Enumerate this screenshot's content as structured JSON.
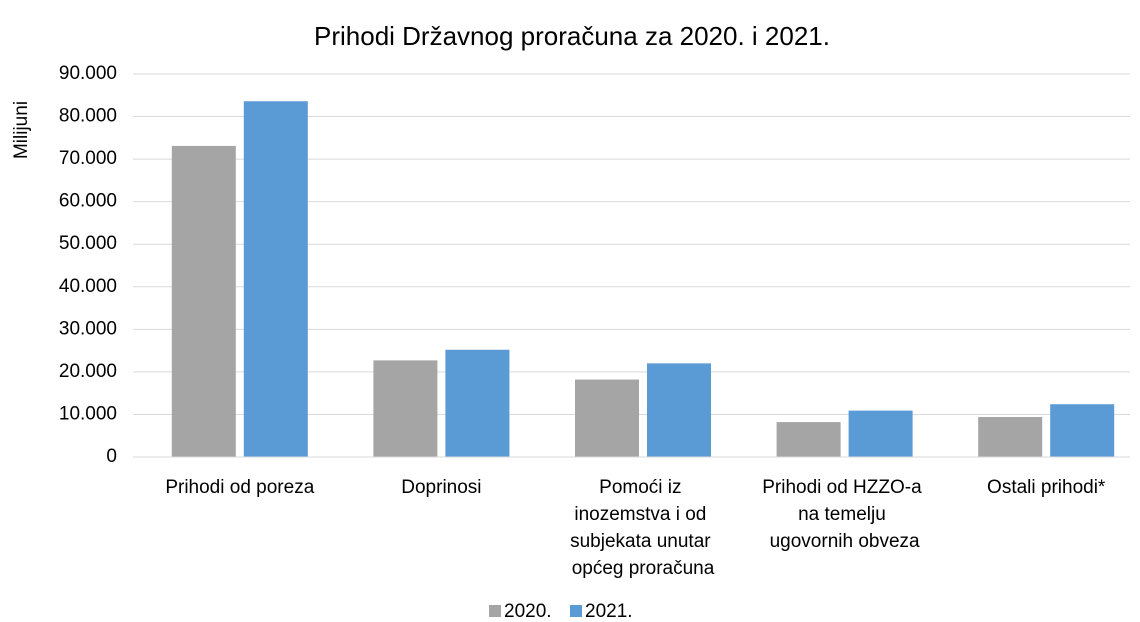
{
  "chart_data": {
    "type": "bar",
    "title": "Prihodi Državnog proračuna za 2020. i 2021.",
    "y_axis_label": "Milijuni",
    "categories": [
      "Prihodi od poreza",
      "Doprinosi",
      "Pomoći iz inozemstva i od subjekata unutar općeg proračuna",
      "Prihodi od HZZO-a na temelju ugovornih obveza",
      "Ostali prihodi*"
    ],
    "series": [
      {
        "name": "2020.",
        "color": "#a5a5a5",
        "values": [
          73100,
          22700,
          18200,
          8200,
          9400
        ]
      },
      {
        "name": "2021.",
        "color": "#5b9bd5",
        "values": [
          83600,
          25200,
          22000,
          10900,
          12400
        ]
      }
    ],
    "ylim": [
      0,
      90000
    ],
    "yticks": [
      0,
      {
        "value": 10000,
        "label": "10.000"
      },
      {
        "value": 20000,
        "label": "20.000"
      },
      {
        "value": 30000,
        "label": "30.000"
      },
      {
        "value": 40000,
        "label": "40.000"
      },
      {
        "value": 50000,
        "label": "50.000"
      },
      {
        "value": 60000,
        "label": "60.000"
      },
      {
        "value": 70000,
        "label": "70.000"
      },
      {
        "value": 80000,
        "label": "80.000"
      },
      {
        "value": 90000,
        "label": "90.000"
      }
    ],
    "grid": true,
    "legend": "bottom"
  }
}
